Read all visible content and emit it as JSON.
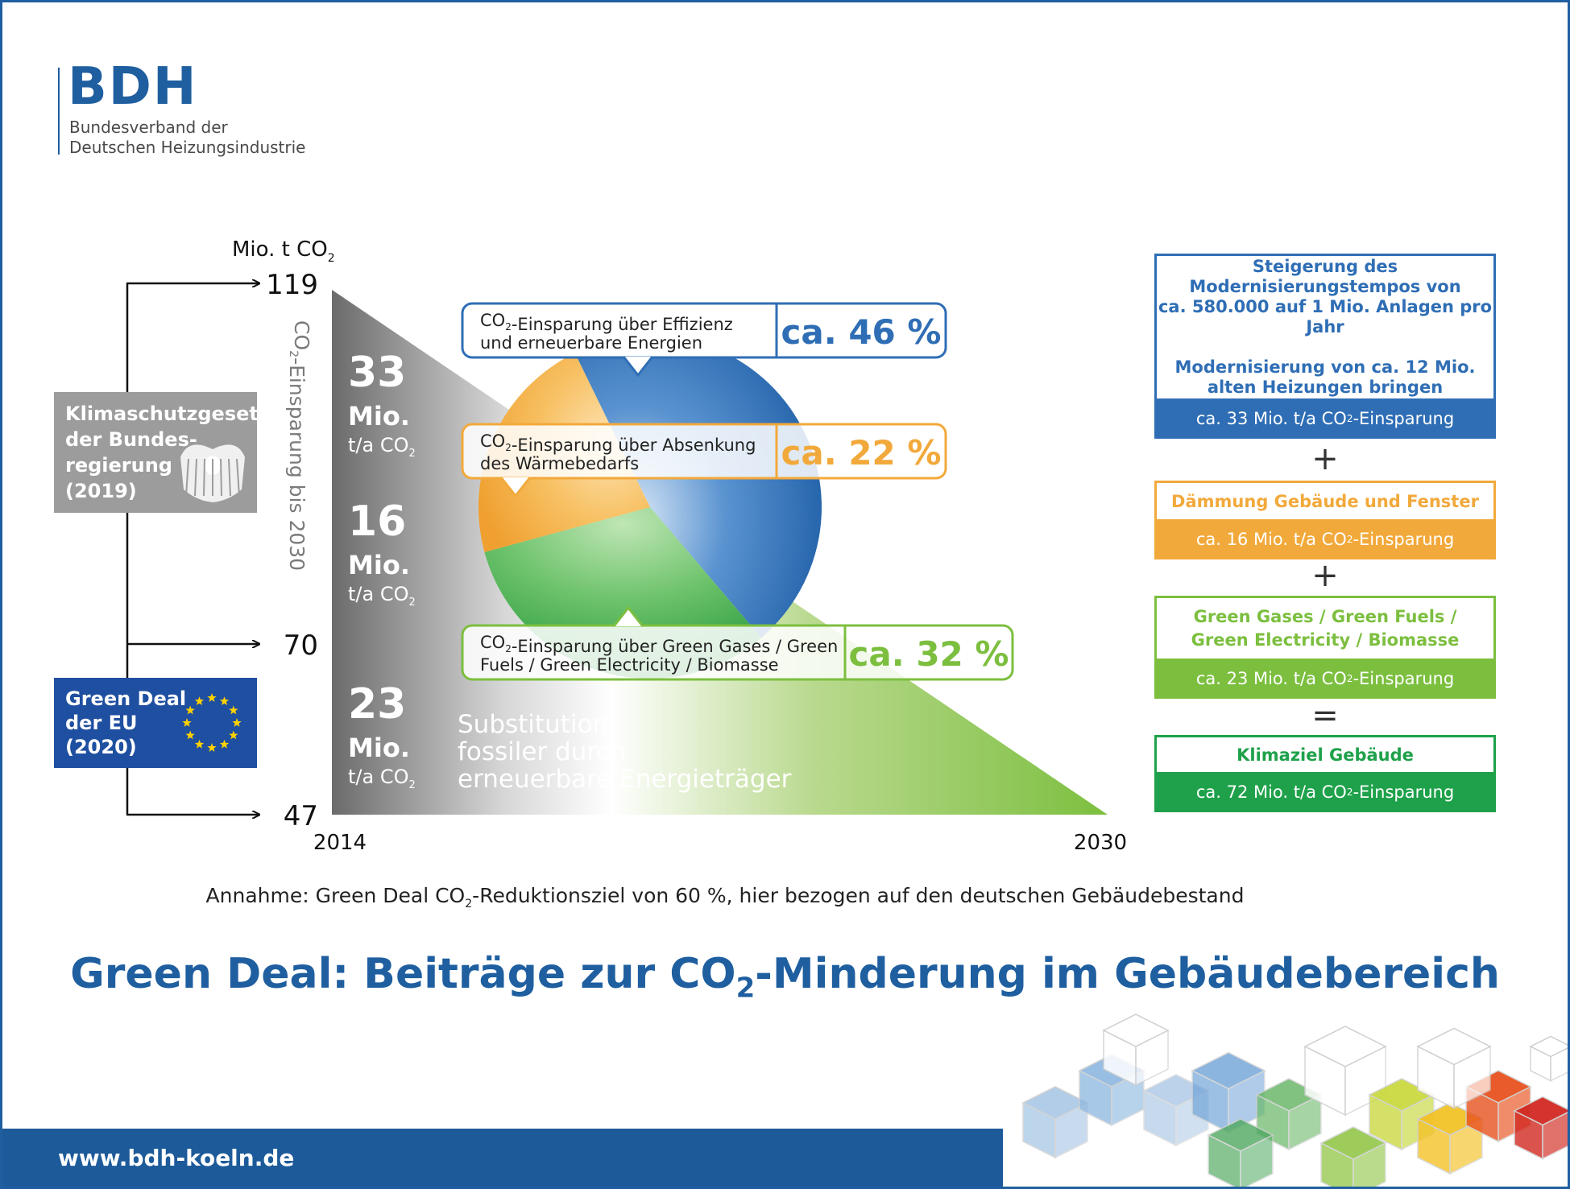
{
  "logo": {
    "abbr": "BDH",
    "line1": "Bundesverband der",
    "line2": "Deutschen Heizungsindustrie"
  },
  "chart_data": {
    "type": "area",
    "y_unit_label": "Mio. t CO₂",
    "y_axis_ticks": [
      119,
      70,
      47
    ],
    "x_axis_ticks": [
      "2014",
      "2030"
    ],
    "vertical_label": "CO₂-Einsparung bis 2030",
    "reductions": [
      {
        "value": "33",
        "unit": "Mio.",
        "sub": "t/a CO₂"
      },
      {
        "value": "16",
        "unit": "Mio.",
        "sub": "t/a CO₂"
      },
      {
        "value": "23",
        "unit": "Mio.",
        "sub": "t/a CO₂"
      }
    ],
    "substitution_text": [
      "Substitution",
      "fossiler durch",
      "erneuerbare Energieträger"
    ],
    "pie": {
      "type": "pie",
      "slices": [
        {
          "label_lines": [
            "CO₂-Einsparung über Effizienz",
            "und erneuerbare Energien"
          ],
          "value": 46,
          "display": "ca. 46 %",
          "color": "#2f6eb5"
        },
        {
          "label_lines": [
            "CO₂-Einsparung über Absenkung",
            "des Wärmebedarfs"
          ],
          "value": 22,
          "display": "ca. 22 %",
          "color": "#f2a93b"
        },
        {
          "label_lines": [
            "CO₂-Einsparung über Green Gases / Green",
            "Fuels / Green Electricity / Biomasse"
          ],
          "value": 32,
          "display": "ca. 32 %",
          "color": "#7cbf3f"
        }
      ]
    },
    "left_labels": [
      {
        "lines": [
          "Klimaschutzgesetz",
          "der Bundes-",
          "regierung",
          "(2019)"
        ],
        "color": "#9c9c9c"
      },
      {
        "lines": [
          "Green Deal",
          "der EU",
          "(2020)"
        ],
        "color": "#1f4fa0"
      }
    ]
  },
  "right_panel": {
    "box1": {
      "top_lines": [
        "Steigerung des",
        "Modernisierungstempos von",
        "ca. 580.000 auf 1 Mio. Anlagen pro Jahr",
        "",
        "Modernisierung von ca. 12 Mio.",
        "alten Heizungen bringen"
      ],
      "bottom_pre": "ca. 33 Mio. t/a CO",
      "bottom_sub": "2",
      "bottom_post": "-Einsparung",
      "color": "#2f6eb5"
    },
    "op1": "+",
    "box2": {
      "top_lines": [
        "Dämmung Gebäude und Fenster"
      ],
      "bottom_pre": "ca. 16 Mio. t/a CO",
      "bottom_sub": "2",
      "bottom_post": "-Einsparung",
      "color": "#f2a93b"
    },
    "op2": "+",
    "box3": {
      "top_lines": [
        "Green Gases / Green Fuels /",
        "Green Electricity / Biomasse"
      ],
      "bottom_pre": "ca. 23 Mio. t/a CO",
      "bottom_sub": "2",
      "bottom_post": "-Einsparung",
      "color": "#7cbf3f"
    },
    "op3": "=",
    "box4": {
      "top_lines": [
        "Klimaziel Gebäude"
      ],
      "bottom_pre": "ca. 72 Mio. t/a CO",
      "bottom_sub": "2",
      "bottom_post": "-Einsparung",
      "color": "#1ea14a"
    }
  },
  "assumption": {
    "pre": "Annahme: Green Deal CO",
    "sub": "2",
    "post": "-Reduktionsziel von 60 %, hier bezogen auf den deutschen Gebäudebestand"
  },
  "title": {
    "pre": "Green Deal: Beiträge zur CO",
    "sub": "2",
    "post": "-Minderung im Gebäudebereich"
  },
  "footer": {
    "url": "www.bdh-koeln.de"
  },
  "colors": {
    "brand": "#1f5fa0",
    "blue": "#2f6eb5",
    "orange": "#f2a93b",
    "green": "#7cbf3f",
    "dark_green": "#1ea14a",
    "grey": "#9c9c9c"
  }
}
